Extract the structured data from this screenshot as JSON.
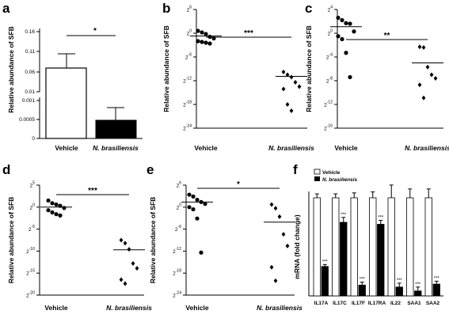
{
  "chart_data": [
    {
      "panel": "a",
      "type": "bar",
      "ylabel": "Relative abundance of SFB",
      "categories": [
        "Vehicle",
        "N. brasiliensis"
      ],
      "values": [
        0.08,
        0.0006
      ],
      "errors": [
        0.03,
        0.0004
      ],
      "colors": [
        "#ffffff",
        "#000000"
      ],
      "significance": "*",
      "upper_ticks": [
        "0.16",
        "0.11",
        "0.06",
        "0.01"
      ],
      "lower_ticks": [
        "0.001",
        "0.0005",
        "0"
      ]
    },
    {
      "panel": "b",
      "type": "scatter",
      "ylabel": "Relative abundance of SFB",
      "categories": [
        "Vehicle",
        "N. brasiliensis"
      ],
      "yticks": [
        "2^6",
        "2^0",
        "2^-6",
        "2^-12",
        "2^-18",
        "2^-24"
      ],
      "tick_exponents": [
        6,
        0,
        -6,
        -12,
        -18,
        -24
      ],
      "ylim_exp": [
        -24,
        6
      ],
      "groups": [
        {
          "name": "Vehicle",
          "log2_values": [
            0.6,
            0.2,
            -0.2,
            -0.9,
            -1.3,
            -2.0,
            -2.2,
            -2.4,
            -2.6
          ],
          "mean_log2": -0.7,
          "marker": "circle"
        },
        {
          "name": "N. brasiliensis",
          "log2_values": [
            -9.8,
            -10.5,
            -11.1,
            -12.4,
            -13.5,
            -14.1,
            -18.0,
            -19.6
          ],
          "mean_log2": -10.9,
          "marker": "diamond"
        }
      ],
      "significance": "***"
    },
    {
      "panel": "c",
      "type": "scatter",
      "ylabel": "Relative abundance of SFB",
      "categories": [
        "Vehicle",
        "N. brasiliensis"
      ],
      "yticks": [
        "2^4",
        "2^0",
        "2^-4",
        "2^-8",
        "2^-12",
        "2^-16"
      ],
      "tick_exponents": [
        4,
        0,
        -4,
        -8,
        -12,
        -16
      ],
      "ylim_exp": [
        -16,
        4
      ],
      "groups": [
        {
          "name": "Vehicle",
          "log2_values": [
            2.6,
            2.2,
            1.7,
            1.6,
            0.3,
            -0.5,
            -1.0,
            -3.3,
            -7.4
          ],
          "mean_log2": 1.1,
          "marker": "circle"
        },
        {
          "name": "N. brasiliensis",
          "log2_values": [
            -2.3,
            -2.4,
            -5.7,
            -7.0,
            -7.6,
            -8.7,
            -10.9
          ],
          "mean_log2": -5.0,
          "marker": "diamond"
        }
      ],
      "significance": "**"
    },
    {
      "panel": "d",
      "type": "scatter",
      "ylabel": "Relative abundance of SFB",
      "categories": [
        "Vehicle",
        "N. brasiliensis"
      ],
      "yticks": [
        "2^5",
        "2^0",
        "2^-5",
        "2^-10",
        "2^-15",
        "2^-20"
      ],
      "tick_exponents": [
        5,
        0,
        -5,
        -10,
        -15,
        -20
      ],
      "ylim_exp": [
        -20,
        5
      ],
      "groups": [
        {
          "name": "Vehicle",
          "log2_values": [
            1.5,
            0.9,
            0.6,
            0.3,
            -0.2,
            -0.7,
            -1.2,
            -1.6,
            -1.9
          ],
          "mean_log2": 0.0,
          "marker": "circle"
        },
        {
          "name": "N. brasiliensis",
          "log2_values": [
            -7.5,
            -8.2,
            -9.6,
            -12.8,
            -13.9,
            -16.5,
            -17.4
          ],
          "mean_log2": -9.7,
          "marker": "diamond"
        }
      ],
      "significance": "***"
    },
    {
      "panel": "e",
      "type": "scatter",
      "ylabel": "Relative abundance of SFB",
      "categories": [
        "Vehicle",
        "N. brasiliensis"
      ],
      "yticks": [
        "2^6",
        "2^0",
        "2^-6",
        "2^-12",
        "2^-18",
        "2^-24"
      ],
      "tick_exponents": [
        6,
        0,
        -6,
        -12,
        -18,
        -24
      ],
      "ylim_exp": [
        -24,
        6
      ],
      "groups": [
        {
          "name": "Vehicle",
          "log2_values": [
            3.4,
            2.9,
            2.0,
            1.4,
            0.9,
            0.0,
            -0.6,
            -3.1,
            -12.4
          ],
          "mean_log2": 1.4,
          "marker": "circle"
        },
        {
          "name": "N. brasiliensis",
          "log2_values": [
            0.7,
            -0.3,
            -2.6,
            -7.4,
            -10.6,
            -16.4,
            -20.1
          ],
          "mean_log2": -4.1,
          "marker": "diamond"
        }
      ],
      "significance": "*"
    },
    {
      "panel": "f",
      "type": "bar",
      "ylabel": "mRNA (fold change)",
      "categories": [
        "IL17A",
        "IL17C",
        "IL17F",
        "IL17RA",
        "IL22",
        "SAA1",
        "SAA2"
      ],
      "ylim": [
        0,
        1.0
      ],
      "series": [
        {
          "name": "Vehicle",
          "values": [
            1.0,
            1.0,
            1.0,
            1.0,
            1.0,
            1.0,
            1.0
          ],
          "errors": [
            0.04,
            0.04,
            0.05,
            0.06,
            0.13,
            0.09,
            0.09
          ],
          "color": "#ffffff"
        },
        {
          "name": "N. brasiliensis",
          "values": [
            0.3,
            0.75,
            0.11,
            0.73,
            0.09,
            0.05,
            0.12
          ],
          "errors": [
            0.02,
            0.05,
            0.03,
            0.04,
            0.04,
            0.04,
            0.03
          ],
          "color": "#000000"
        }
      ],
      "significance": [
        "***",
        "***",
        "***",
        "***",
        "***",
        "***",
        "***"
      ],
      "legend": "top-left"
    }
  ]
}
